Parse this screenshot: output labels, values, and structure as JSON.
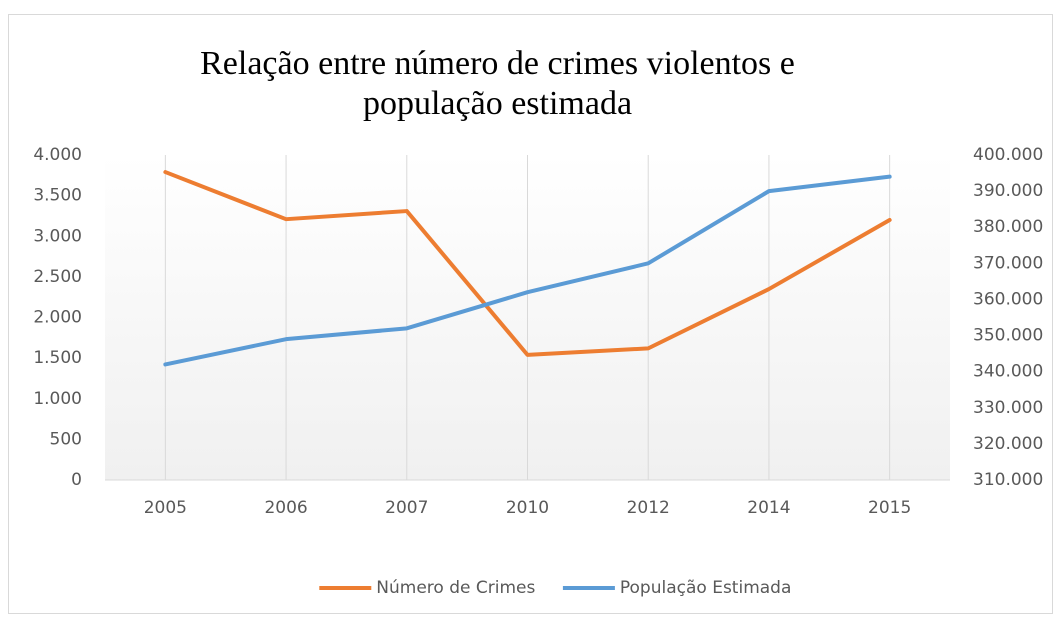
{
  "chart_data": {
    "type": "line",
    "title": "Relação entre número de crimes violentos e população estimada",
    "categories": [
      "2005",
      "2006",
      "2007",
      "2010",
      "2012",
      "2014",
      "2015"
    ],
    "series": [
      {
        "name": "Número de Crimes",
        "color": "#ed7d31",
        "values": [
          3790,
          3210,
          3310,
          1540,
          1620,
          2350,
          3200
        ]
      },
      {
        "name": "População Estimada",
        "color": "#5b9bd5",
        "axis": "y2",
        "values": [
          342000,
          349000,
          352000,
          362000,
          370000,
          390000,
          394000
        ]
      }
    ],
    "ylim": [
      0,
      4000
    ],
    "yticks": [
      0,
      500,
      {
        "value": 1000,
        "label": "1.000"
      },
      {
        "value": 1500,
        "label": "1.500"
      },
      {
        "value": 2000,
        "label": "2.000"
      },
      {
        "value": 2500,
        "label": "2.500"
      },
      {
        "value": 3000,
        "label": "3.000"
      },
      {
        "value": 3500,
        "label": "3.500"
      },
      {
        "value": 4000,
        "label": "4.000"
      }
    ],
    "y2lim": [
      310000,
      400000
    ],
    "y2ticks": [
      {
        "value": 310000,
        "label": "310.000"
      },
      {
        "value": 320000,
        "label": "320.000"
      },
      {
        "value": 330000,
        "label": "330.000"
      },
      {
        "value": 340000,
        "label": "340.000"
      },
      {
        "value": 350000,
        "label": "350.000"
      },
      {
        "value": 360000,
        "label": "360.000"
      },
      {
        "value": 370000,
        "label": "370.000"
      },
      {
        "value": 380000,
        "label": "380.000"
      },
      {
        "value": 390000,
        "label": "390.000"
      },
      {
        "value": 400000,
        "label": "400.000"
      }
    ],
    "grid": false,
    "legend": "bottom"
  }
}
